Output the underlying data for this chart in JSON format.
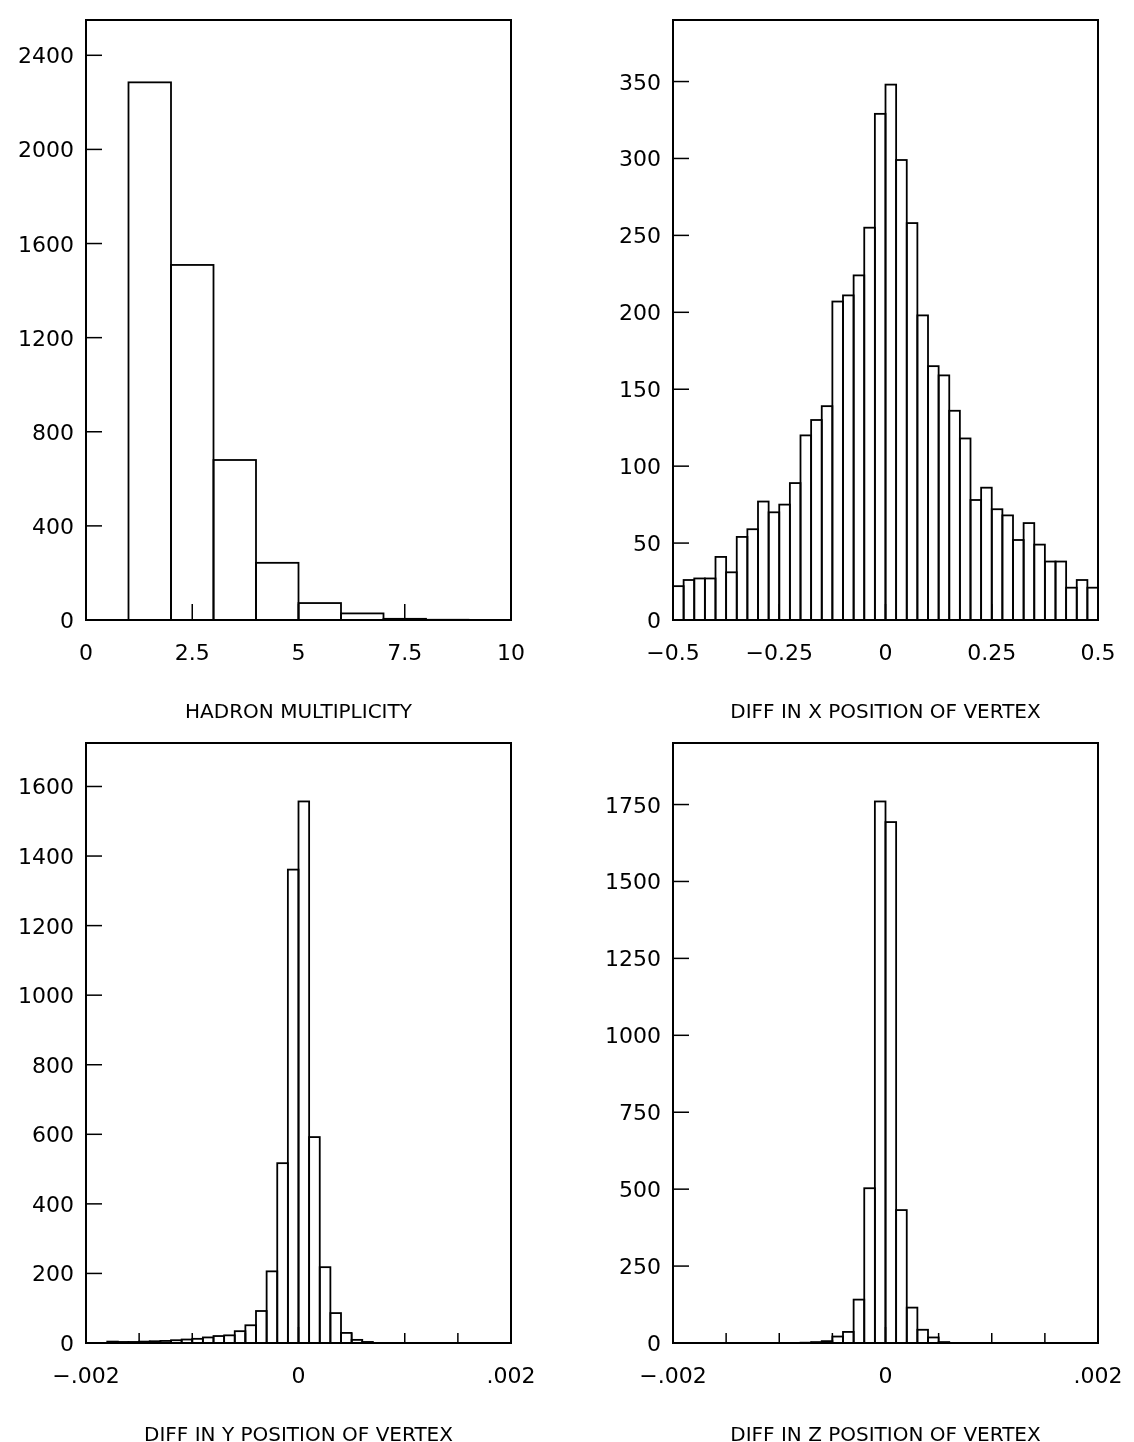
{
  "chart_data": [
    {
      "type": "histogram",
      "xlabel": "HADRON MULTIPLICITY",
      "color": "#000000",
      "bins": [
        0,
        1,
        2,
        3,
        4,
        5,
        6,
        7,
        8,
        9,
        10
      ],
      "values": [
        0,
        2285,
        1509,
        680,
        243,
        72,
        28,
        5,
        1,
        0
      ],
      "xlim": [
        0,
        10
      ],
      "xticks": [
        0,
        2.5,
        5,
        7.5,
        10
      ],
      "ylim": [
        0,
        2550
      ],
      "yticks": [
        0,
        400,
        800,
        1200,
        1600,
        2000,
        2400
      ]
    },
    {
      "type": "histogram",
      "xlabel": "DIFF IN X POSITION OF VERTEX",
      "color": "#000000",
      "bins": [
        -0.5,
        -0.475,
        -0.45,
        -0.425,
        -0.4,
        -0.375,
        -0.35,
        -0.325,
        -0.3,
        -0.275,
        -0.25,
        -0.225,
        -0.2,
        -0.175,
        -0.15,
        -0.125,
        -0.1,
        -0.075,
        -0.05,
        -0.025,
        0,
        0.025,
        0.05,
        0.075,
        0.1,
        0.125,
        0.15,
        0.175,
        0.2,
        0.225,
        0.25,
        0.275,
        0.3,
        0.325,
        0.35,
        0.375,
        0.4,
        0.425,
        0.45,
        0.475,
        0.5
      ],
      "values": [
        22,
        26,
        27,
        27,
        41,
        31,
        54,
        59,
        77,
        70,
        75,
        89,
        120,
        130,
        139,
        207,
        211,
        224,
        255,
        329,
        348,
        299,
        258,
        198,
        165,
        159,
        136,
        118,
        78,
        86,
        72,
        68,
        52,
        63,
        49,
        38,
        38,
        21,
        26,
        21
      ],
      "xlim": [
        -0.5,
        0.5
      ],
      "xticks": [
        {
          "value": -0.5,
          "label": "−0.5"
        },
        {
          "value": -0.25,
          "label": "−0.25"
        },
        0,
        0.25,
        0.5
      ],
      "ylim": [
        0,
        390
      ],
      "yticks": [
        0,
        50,
        100,
        150,
        200,
        250,
        300,
        350
      ]
    },
    {
      "type": "histogram",
      "xlabel": "DIFF IN Y POSITION OF VERTEX",
      "color": "#000000",
      "bins": [
        -0.002,
        -0.0019,
        -0.0018,
        -0.0017,
        -0.0016,
        -0.0015,
        -0.0014,
        -0.0013,
        -0.0012,
        -0.0011,
        -0.001,
        -0.0009,
        -0.0008,
        -0.0007,
        -0.0006,
        -0.0005,
        -0.0004,
        -0.0003,
        -0.0002,
        -0.0001,
        0,
        0.0001,
        0.0002,
        0.0003,
        0.0004,
        0.0005,
        0.0006,
        0.0007,
        0.0008,
        0.0009,
        0.001,
        0.0011,
        0.0012,
        0.0013,
        0.0014,
        0.0015,
        0.0016,
        0.0017,
        0.0018,
        0.0019,
        0.002
      ],
      "values": [
        0,
        0,
        4,
        3,
        3,
        4,
        5,
        6,
        8,
        10,
        12,
        16,
        20,
        22,
        34,
        51,
        92,
        206,
        517,
        1361,
        1557,
        592,
        218,
        86,
        29,
        9,
        3,
        0,
        0,
        0,
        0,
        0,
        0,
        0,
        0,
        0,
        0,
        0,
        0,
        0
      ],
      "xlim": [
        -0.002,
        0.002
      ],
      "xticks": [
        {
          "value": -0.002,
          "label": "−.002"
        },
        {
          "value": -0.0015,
          "label": null
        },
        {
          "value": -0.001,
          "label": null
        },
        {
          "value": -0.0005,
          "label": null
        },
        0,
        {
          "value": 0.0005,
          "label": null
        },
        {
          "value": 0.001,
          "label": null
        },
        {
          "value": 0.0015,
          "label": null
        },
        {
          "value": 0.002,
          "label": ".002"
        }
      ],
      "ylim": [
        0,
        1725
      ],
      "yticks": [
        0,
        200,
        400,
        600,
        800,
        1000,
        1200,
        1400,
        1600
      ]
    },
    {
      "type": "histogram",
      "xlabel": "DIFF IN Z POSITION OF VERTEX",
      "color": "#000000",
      "bins": [
        -0.002,
        -0.0019,
        -0.0018,
        -0.0017,
        -0.0016,
        -0.0015,
        -0.0014,
        -0.0013,
        -0.0012,
        -0.0011,
        -0.001,
        -0.0009,
        -0.0008,
        -0.0007,
        -0.0006,
        -0.0005,
        -0.0004,
        -0.0003,
        -0.0002,
        -0.0001,
        0,
        0.0001,
        0.0002,
        0.0003,
        0.0004,
        0.0005,
        0.0006,
        0.0007,
        0.0008,
        0.0009,
        0.001,
        0.0011,
        0.0012,
        0.0013,
        0.0014,
        0.0015,
        0.0016,
        0.0017,
        0.0018,
        0.0019,
        0.002
      ],
      "values": [
        0,
        0,
        0,
        0,
        0,
        0,
        0,
        0,
        0,
        0,
        0,
        0,
        1,
        3,
        6,
        21,
        36,
        141,
        503,
        1760,
        1693,
        432,
        115,
        43,
        18,
        3,
        0,
        0,
        0,
        0,
        0,
        0,
        0,
        0,
        0,
        0,
        0,
        0,
        0,
        0
      ],
      "xlim": [
        -0.002,
        0.002
      ],
      "xticks": [
        {
          "value": -0.002,
          "label": "−.002"
        },
        {
          "value": -0.0015,
          "label": null
        },
        {
          "value": -0.001,
          "label": null
        },
        {
          "value": -0.0005,
          "label": null
        },
        0,
        {
          "value": 0.0005,
          "label": null
        },
        {
          "value": 0.001,
          "label": null
        },
        {
          "value": 0.0015,
          "label": null
        },
        {
          "value": 0.002,
          "label": ".002"
        }
      ],
      "ylim": [
        0,
        1950
      ],
      "yticks": [
        0,
        250,
        500,
        750,
        1000,
        1250,
        1500,
        1750
      ]
    }
  ]
}
